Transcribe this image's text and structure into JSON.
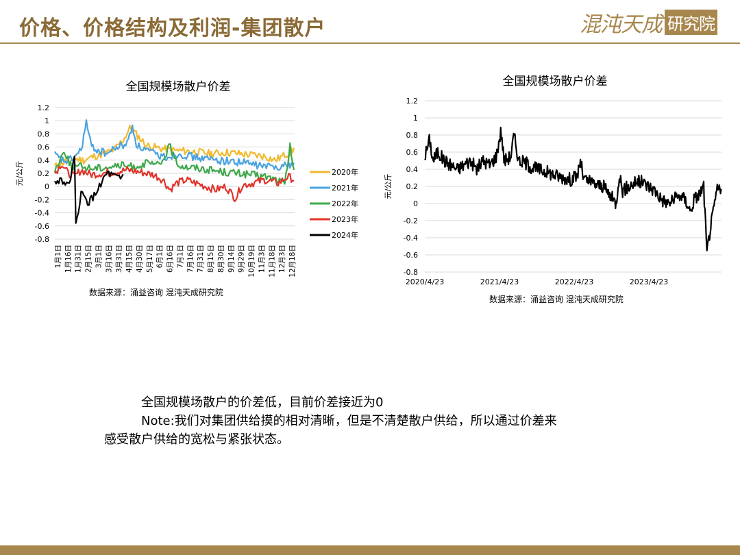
{
  "header": {
    "title": "价格、价格结构及利润-集团散户",
    "logo_main": "混沌天成",
    "logo_box": "研究院"
  },
  "colors": {
    "accent": "#a8874e",
    "title": "#8a6a36"
  },
  "chart_data": [
    {
      "type": "line",
      "title": "全国规模场散户价差",
      "ylabel": "元/公斤",
      "ylim": [
        -0.8,
        1.2
      ],
      "yticks": [
        "1.2",
        "1",
        "0.8",
        "0.6",
        "0.4",
        "0.2",
        "0",
        "-0.2",
        "-0.4",
        "-0.6",
        "-0.8"
      ],
      "x_tick_labels": [
        "1月1日",
        "1月16日",
        "1月31日",
        "2月15日",
        "3月1日",
        "3月16日",
        "3月31日",
        "4月15日",
        "4月30日",
        "5月17日",
        "6月1日",
        "6月16日",
        "7月1日",
        "7月16日",
        "7月31日",
        "8月15日",
        "8月30日",
        "9月14日",
        "9月29日",
        "10月19日",
        "11月3日",
        "11月18日",
        "12月3日",
        "12月18日"
      ],
      "grid": true,
      "legend_position": "right",
      "source": "数据来源：涌益咨询  混沌天成研究院",
      "series": [
        {
          "name": "2020年",
          "color": "#f2b92d",
          "anchors": [
            [
              0,
              0.3
            ],
            [
              15,
              0.38
            ],
            [
              30,
              0.42
            ],
            [
              45,
              0.4
            ],
            [
              60,
              0.46
            ],
            [
              75,
              0.5
            ],
            [
              90,
              0.56
            ],
            [
              105,
              0.72
            ],
            [
              115,
              0.9
            ],
            [
              125,
              0.78
            ],
            [
              140,
              0.62
            ],
            [
              160,
              0.58
            ],
            [
              180,
              0.55
            ],
            [
              200,
              0.54
            ],
            [
              220,
              0.52
            ],
            [
              240,
              0.5
            ],
            [
              260,
              0.52
            ],
            [
              280,
              0.5
            ],
            [
              300,
              0.48
            ],
            [
              320,
              0.46
            ],
            [
              335,
              0.4
            ],
            [
              350,
              0.48
            ],
            [
              365,
              0.56
            ]
          ]
        },
        {
          "name": "2021年",
          "color": "#4aa3e0",
          "anchors": [
            [
              0,
              0.48
            ],
            [
              10,
              0.4
            ],
            [
              20,
              0.38
            ],
            [
              30,
              0.45
            ],
            [
              40,
              0.55
            ],
            [
              48,
              0.98
            ],
            [
              55,
              0.62
            ],
            [
              65,
              0.55
            ],
            [
              80,
              0.5
            ],
            [
              95,
              0.6
            ],
            [
              110,
              0.65
            ],
            [
              118,
              0.92
            ],
            [
              125,
              0.62
            ],
            [
              140,
              0.55
            ],
            [
              155,
              0.48
            ],
            [
              170,
              0.45
            ],
            [
              190,
              0.5
            ],
            [
              210,
              0.45
            ],
            [
              230,
              0.42
            ],
            [
              250,
              0.4
            ],
            [
              270,
              0.38
            ],
            [
              290,
              0.36
            ],
            [
              310,
              0.32
            ],
            [
              330,
              0.3
            ],
            [
              350,
              0.32
            ],
            [
              365,
              0.35
            ]
          ]
        },
        {
          "name": "2022年",
          "color": "#3ea84a",
          "anchors": [
            [
              0,
              0.25
            ],
            [
              15,
              0.55
            ],
            [
              25,
              0.3
            ],
            [
              40,
              0.3
            ],
            [
              60,
              0.28
            ],
            [
              80,
              0.3
            ],
            [
              100,
              0.32
            ],
            [
              120,
              0.3
            ],
            [
              140,
              0.35
            ],
            [
              160,
              0.32
            ],
            [
              175,
              0.62
            ],
            [
              185,
              0.35
            ],
            [
              200,
              0.3
            ],
            [
              220,
              0.28
            ],
            [
              240,
              0.25
            ],
            [
              260,
              0.22
            ],
            [
              280,
              0.2
            ],
            [
              300,
              0.18
            ],
            [
              320,
              0.15
            ],
            [
              340,
              0.1
            ],
            [
              350,
              0.02
            ],
            [
              358,
              0.6
            ],
            [
              365,
              0.2
            ]
          ]
        },
        {
          "name": "2023年",
          "color": "#e0332a",
          "anchors": [
            [
              0,
              0.2
            ],
            [
              10,
              0.35
            ],
            [
              20,
              0.2
            ],
            [
              30,
              0.15
            ],
            [
              40,
              0.25
            ],
            [
              55,
              0.18
            ],
            [
              70,
              0.2
            ],
            [
              90,
              0.22
            ],
            [
              110,
              0.25
            ],
            [
              130,
              0.22
            ],
            [
              150,
              0.18
            ],
            [
              165,
              0.1
            ],
            [
              175,
              -0.05
            ],
            [
              185,
              0.05
            ],
            [
              200,
              0.1
            ],
            [
              215,
              0.05
            ],
            [
              230,
              0.0
            ],
            [
              245,
              -0.05
            ],
            [
              260,
              0.0
            ],
            [
              275,
              -0.18
            ],
            [
              285,
              0.02
            ],
            [
              300,
              0.05
            ],
            [
              320,
              0.1
            ],
            [
              340,
              0.05
            ],
            [
              355,
              0.15
            ],
            [
              365,
              0.1
            ]
          ]
        },
        {
          "name": "2024年",
          "color": "#000000",
          "anchors": [
            [
              0,
              0.05
            ],
            [
              10,
              0.12
            ],
            [
              20,
              0.0
            ],
            [
              30,
              0.4
            ],
            [
              32,
              -0.6
            ],
            [
              40,
              -0.1
            ],
            [
              50,
              -0.25
            ],
            [
              60,
              -0.15
            ],
            [
              70,
              0.05
            ],
            [
              80,
              0.2
            ],
            [
              90,
              0.15
            ],
            [
              100,
              0.1
            ],
            [
              105,
              0.18
            ]
          ]
        }
      ]
    },
    {
      "type": "line",
      "title": "全国规模场散户价差",
      "ylabel": "元/公斤",
      "ylim": [
        -0.8,
        1.2
      ],
      "yticks": [
        "1.2",
        "1",
        "0.8",
        "0.6",
        "0.4",
        "0.2",
        "0",
        "-0.2",
        "-0.4",
        "-0.6",
        "-0.8"
      ],
      "x_tick_labels": [
        "2020/4/23",
        "2021/4/23",
        "2022/4/23",
        "2023/4/23"
      ],
      "x_range": [
        "2020/4/23",
        "2024/4/23"
      ],
      "grid": true,
      "source": "数据来源：涌益咨询  混沌天成研究院",
      "series": [
        {
          "color": "#000000",
          "anchors": [
            [
              0,
              0.55
            ],
            [
              15,
              0.75
            ],
            [
              25,
              0.5
            ],
            [
              40,
              0.6
            ],
            [
              60,
              0.5
            ],
            [
              80,
              0.45
            ],
            [
              100,
              0.4
            ],
            [
              120,
              0.45
            ],
            [
              140,
              0.5
            ],
            [
              160,
              0.4
            ],
            [
              180,
              0.5
            ],
            [
              200,
              0.45
            ],
            [
              220,
              0.55
            ],
            [
              235,
              0.85
            ],
            [
              245,
              0.5
            ],
            [
              265,
              0.55
            ],
            [
              275,
              0.8
            ],
            [
              290,
              0.5
            ],
            [
              310,
              0.48
            ],
            [
              330,
              0.42
            ],
            [
              350,
              0.4
            ],
            [
              370,
              0.38
            ],
            [
              390,
              0.35
            ],
            [
              410,
              0.32
            ],
            [
              430,
              0.3
            ],
            [
              450,
              0.28
            ],
            [
              470,
              0.32
            ],
            [
              480,
              0.5
            ],
            [
              490,
              0.28
            ],
            [
              510,
              0.25
            ],
            [
              530,
              0.22
            ],
            [
              550,
              0.2
            ],
            [
              570,
              0.1
            ],
            [
              590,
              0.0
            ],
            [
              600,
              0.35
            ],
            [
              610,
              0.15
            ],
            [
              630,
              0.2
            ],
            [
              650,
              0.25
            ],
            [
              670,
              0.25
            ],
            [
              690,
              0.2
            ],
            [
              710,
              0.15
            ],
            [
              730,
              0.05
            ],
            [
              750,
              0.0
            ],
            [
              770,
              0.05
            ],
            [
              790,
              0.1
            ],
            [
              810,
              0.0
            ],
            [
              820,
              -0.1
            ],
            [
              830,
              0.05
            ],
            [
              845,
              0.1
            ],
            [
              860,
              0.2
            ],
            [
              870,
              -0.58
            ],
            [
              880,
              -0.3
            ],
            [
              890,
              -0.1
            ],
            [
              900,
              0.15
            ],
            [
              915,
              0.2
            ]
          ]
        }
      ]
    }
  ],
  "text": {
    "line1": "全国规模场散户的价差低，目前价差接近为0",
    "line2": "Note:我们对集团供给摸的相对清晰，但是不清楚散户供给，所以通过价差来",
    "line3": "感受散户供给的宽松与紧张状态。"
  }
}
